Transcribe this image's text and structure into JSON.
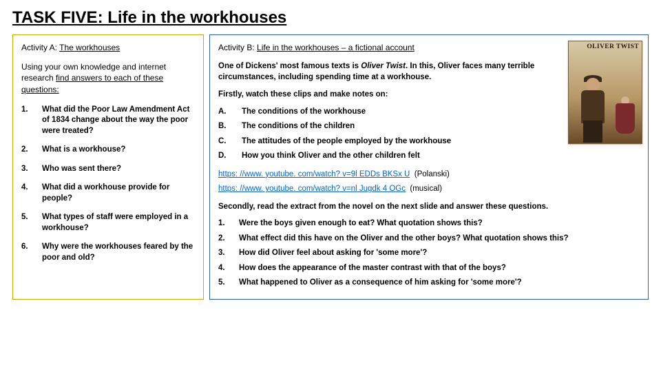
{
  "title": "TASK FIVE: Life in the workhouses",
  "activityA": {
    "heading_prefix": "Activity A: ",
    "heading_underlined": "The workhouses",
    "instr_pre": "Using your own knowledge and internet research ",
    "instr_underlined": "find answers to each of these questions:",
    "questions": [
      {
        "n": "1.",
        "t": "What did the Poor Law Amendment Act of 1834 change about the way the poor were treated?"
      },
      {
        "n": "2.",
        "t": "What is a workhouse?"
      },
      {
        "n": "3.",
        "t": "Who was sent there?"
      },
      {
        "n": "4.",
        "t": "What did a workhouse provide for people?"
      },
      {
        "n": "5.",
        "t": "What types of staff were employed in a workhouse?"
      },
      {
        "n": "6.",
        "t": "Why were the workhouses feared by the poor and old?"
      }
    ]
  },
  "activityB": {
    "heading_prefix": "Activity B: ",
    "heading_underlined": "Life in the workhouses – a fictional account",
    "intro_pre": "One of Dickens' most famous texts is ",
    "intro_ital": "Oliver Twist",
    "intro_post": ". In this, Oliver faces many terrible circumstances, including spending time at a workhouse.",
    "watch_pre": "Firstly, ",
    "watch_bold": "watch",
    "watch_post": " these clips and make notes on:",
    "letters": [
      {
        "n": "A.",
        "t": "The conditions of the workhouse"
      },
      {
        "n": "B.",
        "t": "The conditions of the children"
      },
      {
        "n": "C.",
        "t": "The attitudes of the people employed by the workhouse"
      },
      {
        "n": "D.",
        "t": "How you think Oliver and the other children felt"
      }
    ],
    "link1_url": "https: //www. youtube. com/watch? v=9l EDDs BKSx U",
    "link1_label": "(Polanski)",
    "link2_url": "https: //www. youtube. com/watch? v=nl Jugdk 4 OGc",
    "link2_label": "(musical)",
    "secondly_pre": "Secondly, ",
    "secondly_bold": "read",
    "secondly_post": " the extract from the novel on the next slide and answer these questions.",
    "questions": [
      {
        "n": "1.",
        "t": "Were the boys given enough to eat? What quotation shows this?"
      },
      {
        "n": "2.",
        "t": "What effect did this have on the Oliver and the other boys? What quotation shows this?"
      },
      {
        "n": "3.",
        "t": "How did Oliver feel about asking for 'some more'?"
      },
      {
        "n": "4.",
        "t": "How does the appearance of the master contrast with that of the boys?"
      },
      {
        "n": "5.",
        "t": "What happened to Oliver as a consequence of him asking for 'some more'?"
      }
    ],
    "poster_title": "OLIVER TWIST"
  }
}
